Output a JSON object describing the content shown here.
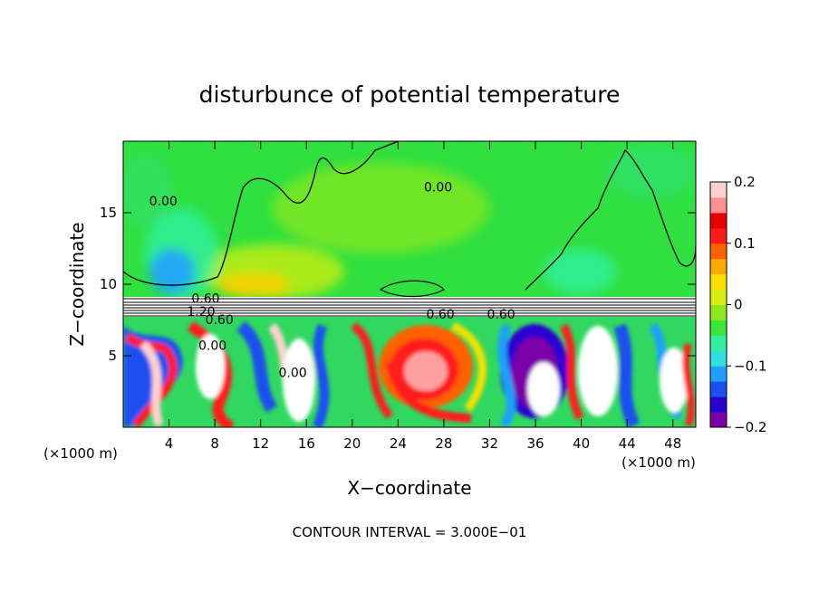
{
  "chart_data": {
    "type": "heatmap",
    "title": "disturbunce of potential temperature",
    "xlabel": "X−coordinate",
    "ylabel": "Z−coordinate",
    "x_unit_label_left": "(×1000 m)",
    "x_unit_label_right": "(×1000 m)",
    "xlim": [
      0,
      50
    ],
    "ylim": [
      0,
      20
    ],
    "x_ticks": [
      4,
      8,
      12,
      16,
      20,
      24,
      28,
      32,
      36,
      40,
      44,
      48
    ],
    "y_ticks": [
      5,
      10,
      15
    ],
    "colorbar": {
      "range": [
        -0.2,
        0.2
      ],
      "tick_values": [
        -0.2,
        -0.1,
        0,
        0.1,
        0.2
      ],
      "tick_labels": [
        "−0.2",
        "−0.1",
        "0",
        "0.1",
        "0.2"
      ],
      "colors": [
        "#7a00a8",
        "#2a00d0",
        "#1a50f0",
        "#1fa0ff",
        "#2fe0e0",
        "#30f0a0",
        "#3ce63c",
        "#8ce81a",
        "#d8ee10",
        "#f8e000",
        "#ffa800",
        "#ff6000",
        "#ff1a1a",
        "#e60000",
        "#ff9090",
        "#ffd0d0"
      ]
    },
    "contour_labels": [
      {
        "x": 3.5,
        "y": 15.5,
        "text": "0.00"
      },
      {
        "x": 27.5,
        "y": 16.5,
        "text": "0.00"
      },
      {
        "x": 7.2,
        "y": 8.7,
        "text": "0.60"
      },
      {
        "x": 6.8,
        "y": 7.8,
        "text": "1.20"
      },
      {
        "x": 8.4,
        "y": 7.2,
        "text": "0.60"
      },
      {
        "x": 27.7,
        "y": 7.6,
        "text": "0.60"
      },
      {
        "x": 33.0,
        "y": 7.6,
        "text": "0.60"
      },
      {
        "x": 7.8,
        "y": 5.4,
        "text": "0.00"
      },
      {
        "x": 14.8,
        "y": 3.5,
        "text": "0.00"
      }
    ],
    "contour_interval_text": "CONTOUR INTERVAL = 3.000E−01"
  }
}
